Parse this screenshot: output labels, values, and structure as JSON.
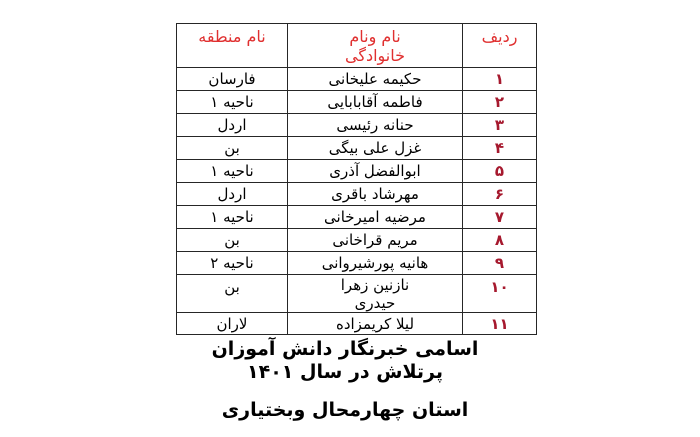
{
  "colors": {
    "background": "#ffffff",
    "header_red": "#e03030",
    "number_red": "#a6192e",
    "border": "#262626",
    "text": "#000000"
  },
  "table": {
    "headers": {
      "radif": "ردیف",
      "name": "نام ونام\nخانوادگی",
      "region": "نام منطقه"
    },
    "rows": [
      {
        "radif": "۱",
        "name": "حکیمه علیخانی",
        "region": "فارسان"
      },
      {
        "radif": "۲",
        "name": "فاطمه آقابابایی",
        "region": "ناحیه ۱"
      },
      {
        "radif": "۳",
        "name": "حنانه رئیسی",
        "region": "اردل"
      },
      {
        "radif": "۴",
        "name": "غزل علی بیگی",
        "region": "بن"
      },
      {
        "radif": "۵",
        "name": "ابوالفضل آذری",
        "region": "ناحیه ۱"
      },
      {
        "radif": "۶",
        "name": "مهرشاد باقری",
        "region": "اردل"
      },
      {
        "radif": "۷",
        "name": "مرضیه امیرخانی",
        "region": "ناحیه ۱"
      },
      {
        "radif": "۸",
        "name": "مریم قراخانی",
        "region": "بن"
      },
      {
        "radif": "۹",
        "name": "هانیه پورشیروانی",
        "region": "ناحیه ۲"
      },
      {
        "radif": "۱۰",
        "name": "نازنین زهرا\nحیدری",
        "region": "بن"
      },
      {
        "radif": "۱۱",
        "name": "لیلا کریمزاده",
        "region": "لاران"
      }
    ]
  },
  "footer": {
    "line1": "اسامی خبرنگار دانش آموزان",
    "line2": "پرتلاش در سال ۱۴۰۱",
    "line3": "استان چهارمحال وبختیاری"
  }
}
